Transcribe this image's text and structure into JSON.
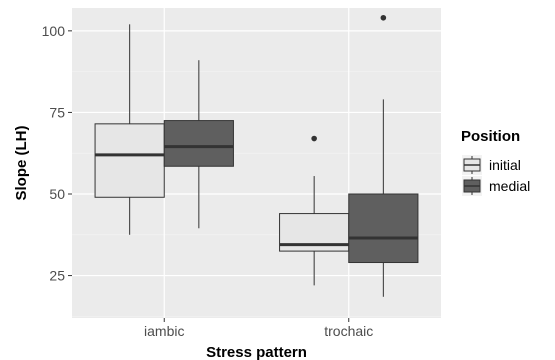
{
  "chart_data": {
    "type": "boxplot",
    "xlabel": "Stress pattern",
    "ylabel": "Slope (LH)",
    "categories": [
      "iambic",
      "trochaic"
    ],
    "ylim": [
      12,
      107
    ],
    "yticks": [
      25,
      50,
      75,
      100
    ],
    "grid": true,
    "legend": {
      "title": "Position",
      "placement": "right"
    },
    "series": [
      {
        "name": "initial",
        "color": "#e6e6e6",
        "boxes": [
          {
            "category": "iambic",
            "whisker_low": 37.5,
            "q1": 49,
            "median": 62,
            "q3": 71.5,
            "whisker_high": 102,
            "outliers": []
          },
          {
            "category": "trochaic",
            "whisker_low": 22,
            "q1": 32.5,
            "median": 34.5,
            "q3": 44,
            "whisker_high": 55.5,
            "outliers": [
              67
            ]
          }
        ]
      },
      {
        "name": "medial",
        "color": "#5f5f5f",
        "boxes": [
          {
            "category": "iambic",
            "whisker_low": 39.5,
            "q1": 58.5,
            "median": 64.5,
            "q3": 72.5,
            "whisker_high": 91,
            "outliers": []
          },
          {
            "category": "trochaic",
            "whisker_low": 18.5,
            "q1": 29,
            "median": 36.5,
            "q3": 50,
            "whisker_high": 79,
            "outliers": [
              104
            ]
          }
        ]
      }
    ]
  }
}
